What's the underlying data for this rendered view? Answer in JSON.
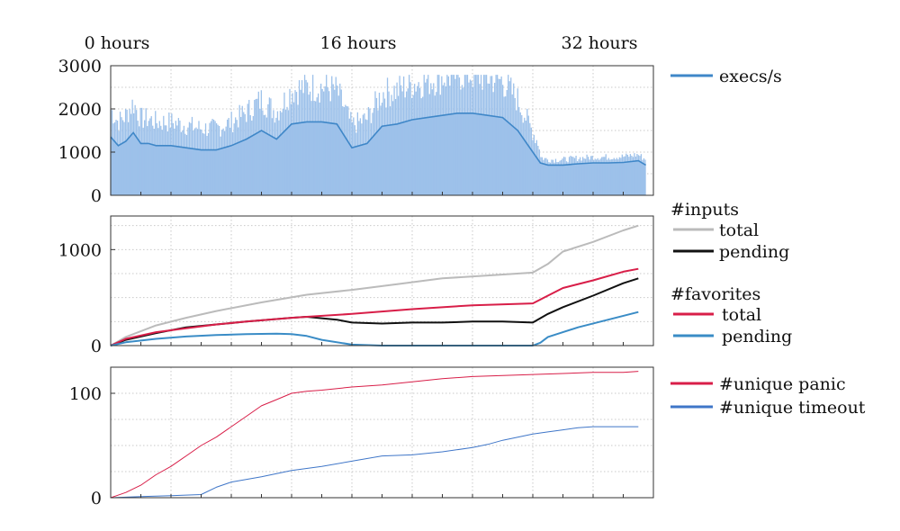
{
  "chart_data": [
    {
      "type": "area",
      "top_axis": {
        "ticks": [
          0,
          16,
          32
        ],
        "tick_labels": [
          "0 hours",
          "16 hours",
          "32 hours"
        ]
      },
      "xlim": [
        0,
        36
      ],
      "ylim": [
        0,
        3000
      ],
      "yticks": [
        0,
        1000,
        2000,
        3000
      ],
      "grid": true,
      "legend": {
        "placement": "right",
        "entries": [
          "execs/s"
        ]
      },
      "series": [
        {
          "name": "execs/s",
          "color": "#3f87c8",
          "fill": "#9dc1ea",
          "x": [
            0,
            0.5,
            1,
            1.5,
            2,
            2.5,
            3,
            4,
            5,
            6,
            7,
            8,
            9,
            10,
            11,
            12,
            13,
            14,
            15,
            16,
            17,
            18,
            19,
            20,
            21,
            22,
            23,
            24,
            25,
            26,
            27,
            28,
            28.5,
            29,
            29.5,
            30,
            31,
            32,
            33,
            34,
            35,
            35.5
          ],
          "values": [
            1350,
            1150,
            1250,
            1450,
            1200,
            1200,
            1150,
            1150,
            1100,
            1050,
            1050,
            1150,
            1300,
            1500,
            1300,
            1650,
            1700,
            1700,
            1650,
            1100,
            1200,
            1600,
            1650,
            1750,
            1800,
            1850,
            1900,
            1900,
            1850,
            1800,
            1500,
            1000,
            750,
            700,
            700,
            700,
            730,
            750,
            750,
            760,
            800,
            700
          ]
        }
      ]
    },
    {
      "type": "line",
      "xlim": [
        0,
        36
      ],
      "ylim": [
        0,
        1350
      ],
      "yticks": [
        0,
        1000
      ],
      "grid": true,
      "legend": {
        "placement": "right",
        "groups": [
          {
            "title": "#inputs",
            "entries": [
              "total",
              "pending"
            ]
          },
          {
            "title": "#favorites",
            "entries": [
              "total",
              "pending"
            ]
          }
        ]
      },
      "series": [
        {
          "name": "total",
          "group": "#inputs",
          "color": "#bbbbbb",
          "x": [
            0,
            1,
            3,
            5,
            7,
            10,
            13,
            16,
            19,
            22,
            25,
            28,
            29,
            30,
            32,
            34,
            35
          ],
          "values": [
            0,
            90,
            210,
            290,
            360,
            450,
            530,
            580,
            640,
            700,
            730,
            760,
            850,
            980,
            1080,
            1200,
            1250
          ]
        },
        {
          "name": "pending",
          "group": "#inputs",
          "color": "#111111",
          "x": [
            0,
            1,
            3,
            5,
            7,
            9,
            12,
            13,
            15,
            16,
            18,
            20,
            22,
            24,
            26,
            28,
            29,
            30,
            32,
            34,
            35
          ],
          "values": [
            0,
            60,
            130,
            190,
            220,
            250,
            290,
            300,
            270,
            240,
            230,
            240,
            240,
            250,
            250,
            240,
            330,
            400,
            520,
            650,
            700
          ]
        },
        {
          "name": "total",
          "group": "#favorites",
          "color": "#d81e48",
          "x": [
            0,
            1,
            3,
            5,
            7,
            9,
            12,
            13,
            16,
            20,
            24,
            28,
            29,
            30,
            32,
            34,
            35
          ],
          "values": [
            0,
            70,
            140,
            180,
            220,
            250,
            290,
            300,
            330,
            380,
            420,
            440,
            520,
            600,
            680,
            770,
            800
          ]
        },
        {
          "name": "pending",
          "group": "#favorites",
          "color": "#3a8cc6",
          "x": [
            0,
            1,
            3,
            5,
            7,
            9,
            11,
            12,
            13,
            14,
            16,
            18,
            20,
            23,
            26,
            28,
            28.5,
            29,
            30,
            31,
            33,
            35
          ],
          "values": [
            0,
            35,
            70,
            95,
            110,
            120,
            125,
            120,
            100,
            60,
            10,
            0,
            0,
            0,
            0,
            0,
            30,
            90,
            140,
            190,
            270,
            350
          ]
        }
      ]
    },
    {
      "type": "line",
      "xlim": [
        0,
        36
      ],
      "ylim": [
        0,
        125
      ],
      "yticks": [
        0,
        100
      ],
      "grid": true,
      "legend": {
        "placement": "right",
        "entries": [
          "#unique panic",
          "#unique timeout"
        ]
      },
      "series": [
        {
          "name": "#unique panic",
          "color": "#d81e48",
          "x": [
            0,
            1,
            2,
            3,
            4,
            5,
            6,
            7,
            8,
            9,
            10,
            11,
            12,
            13,
            14,
            16,
            18,
            20,
            22,
            24,
            26,
            28,
            30,
            32,
            34,
            35
          ],
          "values": [
            0,
            5,
            12,
            22,
            30,
            40,
            50,
            58,
            68,
            78,
            88,
            94,
            100,
            102,
            103,
            106,
            108,
            111,
            114,
            116,
            117,
            118,
            119,
            120,
            120,
            121
          ]
        },
        {
          "name": "#unique timeout",
          "color": "#3f76c8",
          "x": [
            0,
            2,
            4,
            6,
            7,
            8,
            10,
            12,
            14,
            16,
            18,
            20,
            22,
            24,
            25,
            26,
            27,
            28,
            29,
            30,
            31,
            32,
            33,
            35
          ],
          "values": [
            0,
            1,
            2,
            3,
            10,
            15,
            20,
            26,
            30,
            35,
            40,
            41,
            44,
            48,
            51,
            55,
            58,
            61,
            63,
            65,
            67,
            68,
            68,
            68
          ]
        }
      ]
    }
  ]
}
